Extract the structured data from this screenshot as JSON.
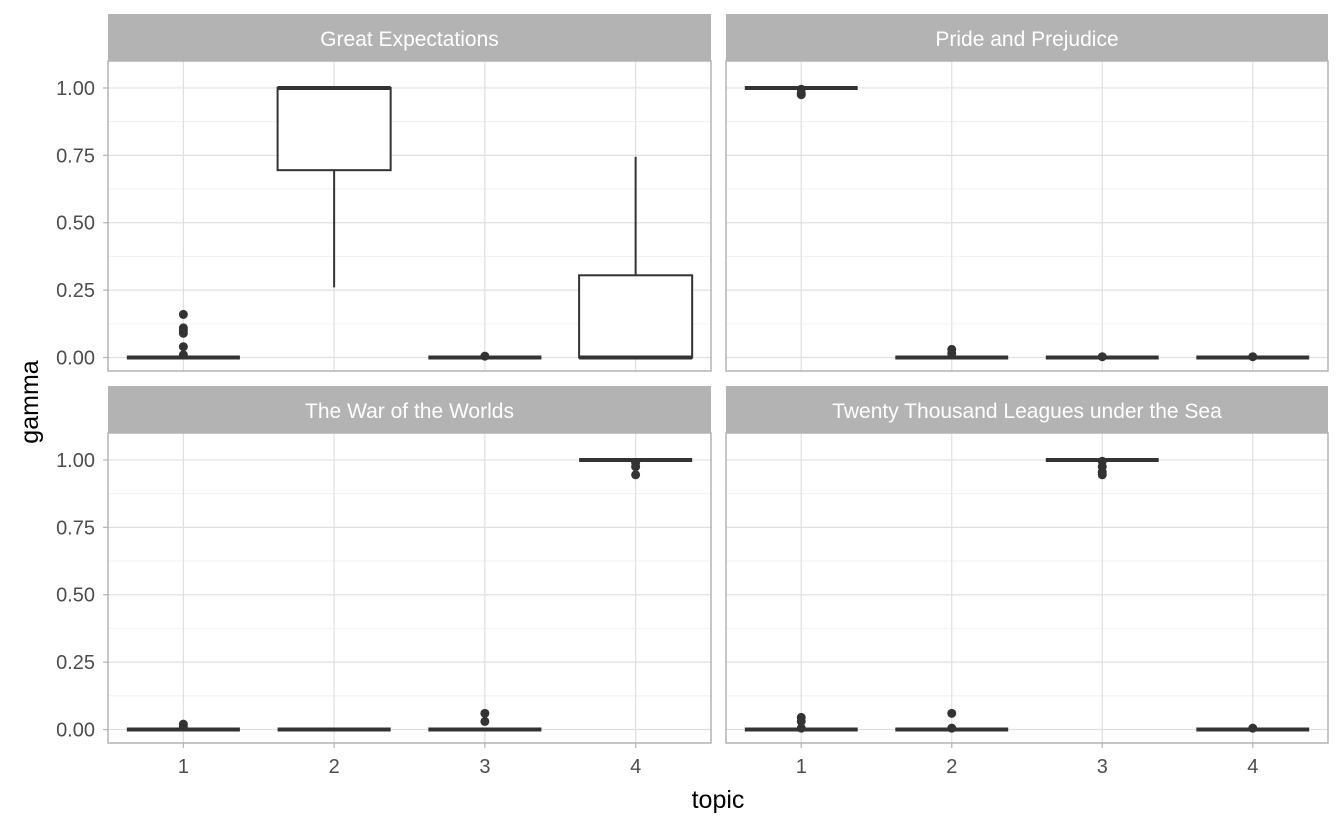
{
  "chart_data": {
    "type": "boxplot",
    "xlabel": "topic",
    "ylabel": "gamma",
    "ylim": [
      -0.05,
      1.1
    ],
    "y_ticks": [
      "0.00",
      "0.25",
      "0.50",
      "0.75",
      "1.00"
    ],
    "y_tick_values": [
      0,
      0.25,
      0.5,
      0.75,
      1
    ],
    "categories": [
      "1",
      "2",
      "3",
      "4"
    ],
    "grid": true,
    "panels": [
      {
        "title": "Great Expectations",
        "boxes": [
          {
            "topic": "1",
            "min": 0,
            "q1": 0,
            "median": 0,
            "q3": 0,
            "max": 0,
            "outliers": [
              0.16,
              0.11,
              0.1,
              0.09,
              0.04,
              0.01
            ]
          },
          {
            "topic": "2",
            "min": 0.26,
            "q1": 0.695,
            "median": 1.0,
            "q3": 1.0,
            "max": 1.0,
            "outliers": []
          },
          {
            "topic": "3",
            "min": 0,
            "q1": 0,
            "median": 0,
            "q3": 0,
            "max": 0,
            "outliers": [
              0.005
            ]
          },
          {
            "topic": "4",
            "min": 0,
            "q1": 0,
            "median": 0,
            "q3": 0.305,
            "max": 0.745,
            "outliers": []
          }
        ]
      },
      {
        "title": "Pride and Prejudice",
        "boxes": [
          {
            "topic": "1",
            "min": 1,
            "q1": 1,
            "median": 1,
            "q3": 1,
            "max": 1,
            "outliers": [
              0.995,
              0.98,
              0.975
            ]
          },
          {
            "topic": "2",
            "min": 0,
            "q1": 0,
            "median": 0,
            "q3": 0,
            "max": 0,
            "outliers": [
              0.03,
              0.015
            ]
          },
          {
            "topic": "3",
            "min": 0,
            "q1": 0,
            "median": 0,
            "q3": 0,
            "max": 0,
            "outliers": [
              0.003
            ]
          },
          {
            "topic": "4",
            "min": 0,
            "q1": 0,
            "median": 0,
            "q3": 0,
            "max": 0,
            "outliers": [
              0.003
            ]
          }
        ]
      },
      {
        "title": "The War of the Worlds",
        "boxes": [
          {
            "topic": "1",
            "min": 0,
            "q1": 0,
            "median": 0,
            "q3": 0,
            "max": 0,
            "outliers": [
              0.02,
              0.01
            ]
          },
          {
            "topic": "2",
            "min": 0,
            "q1": 0,
            "median": 0,
            "q3": 0,
            "max": 0,
            "outliers": []
          },
          {
            "topic": "3",
            "min": 0,
            "q1": 0,
            "median": 0,
            "q3": 0,
            "max": 0,
            "outliers": [
              0.06,
              0.03
            ]
          },
          {
            "topic": "4",
            "min": 1,
            "q1": 1,
            "median": 1,
            "q3": 1,
            "max": 1,
            "outliers": [
              0.99,
              0.975,
              0.945
            ]
          }
        ]
      },
      {
        "title": "Twenty Thousand Leagues under the Sea",
        "boxes": [
          {
            "topic": "1",
            "min": 0,
            "q1": 0,
            "median": 0,
            "q3": 0,
            "max": 0,
            "outliers": [
              0.045,
              0.03,
              0.005
            ]
          },
          {
            "topic": "2",
            "min": 0,
            "q1": 0,
            "median": 0,
            "q3": 0,
            "max": 0,
            "outliers": [
              0.06,
              0.005
            ]
          },
          {
            "topic": "3",
            "min": 1,
            "q1": 1,
            "median": 1,
            "q3": 1,
            "max": 1,
            "outliers": [
              0.995,
              0.975,
              0.955,
              0.945
            ]
          },
          {
            "topic": "4",
            "min": 0,
            "q1": 0,
            "median": 0,
            "q3": 0,
            "max": 0,
            "outliers": [
              0.005
            ]
          }
        ]
      }
    ]
  }
}
